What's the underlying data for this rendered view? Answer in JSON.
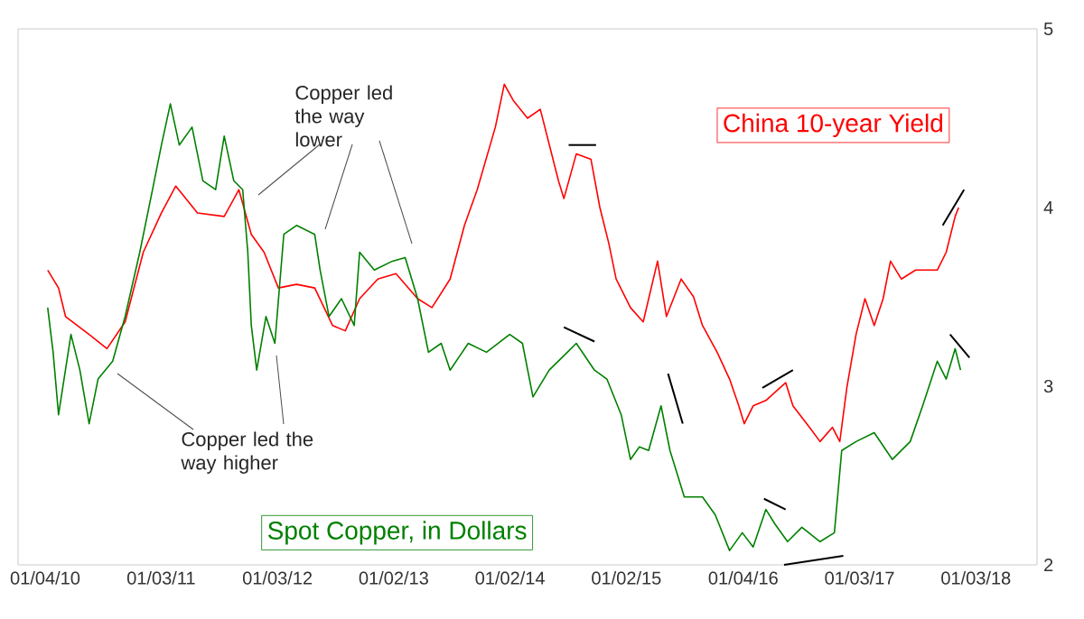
{
  "chart_data": {
    "type": "line",
    "xlim": [
      "2009-10-11",
      "2018-07-14"
    ],
    "ylim": [
      2,
      5
    ],
    "xticks": [
      {
        "value": "2010-01-04",
        "label": "01/04/10"
      },
      {
        "value": "2011-01-03",
        "label": "01/03/11"
      },
      {
        "value": "2012-01-03",
        "label": "01/03/12"
      },
      {
        "value": "2013-01-02",
        "label": "01/02/13"
      },
      {
        "value": "2014-01-02",
        "label": "01/02/14"
      },
      {
        "value": "2015-01-02",
        "label": "01/02/15"
      },
      {
        "value": "2016-01-04",
        "label": "01/04/16"
      },
      {
        "value": "2017-01-03",
        "label": "01/03/17"
      },
      {
        "value": "2018-01-03",
        "label": "01/03/18"
      }
    ],
    "yticks": [
      2,
      3,
      4,
      5
    ],
    "grid": false,
    "series": [
      {
        "name": "China 10-year Yield",
        "color": "#ff0000",
        "x": [
          "2010-01-12",
          "2010-02-15",
          "2010-03-09",
          "2010-05-22",
          "2010-07-17",
          "2010-09-12",
          "2010-11-08",
          "2011-01-04",
          "2011-02-18",
          "2011-04-27",
          "2011-07-20",
          "2011-09-04",
          "2011-10-13",
          "2011-11-22",
          "2012-01-06",
          "2012-03-03",
          "2012-04-29",
          "2012-06-24",
          "2012-08-03",
          "2012-09-17",
          "2012-11-13",
          "2013-01-09",
          "2013-03-18",
          "2013-05-02",
          "2013-06-28",
          "2013-08-12",
          "2013-09-21",
          "2013-11-17",
          "2013-12-15",
          "2014-01-12",
          "2014-02-26",
          "2014-04-07",
          "2014-06-03",
          "2014-06-20",
          "2014-07-29",
          "2014-09-13",
          "2014-10-11",
          "2014-11-08",
          "2014-12-01",
          "2015-01-15",
          "2015-02-24",
          "2015-04-10",
          "2015-05-08",
          "2015-06-23",
          "2015-08-01",
          "2015-08-29",
          "2015-10-14",
          "2015-11-22",
          "2015-12-21",
          "2016-01-07",
          "2016-02-04",
          "2016-03-15",
          "2016-05-16",
          "2016-06-08",
          "2016-08-03",
          "2016-09-01",
          "2016-10-10",
          "2016-11-02",
          "2016-11-24",
          "2016-12-23",
          "2017-01-20",
          "2017-02-18",
          "2017-03-18",
          "2017-04-10",
          "2017-05-14",
          "2017-06-28",
          "2017-09-04",
          "2017-10-02",
          "2017-10-30",
          "2017-11-10"
        ],
        "values": [
          3.65,
          3.55,
          3.39,
          3.29,
          3.21,
          3.36,
          3.75,
          3.97,
          4.12,
          3.97,
          3.95,
          4.1,
          3.85,
          3.75,
          3.55,
          3.57,
          3.55,
          3.34,
          3.31,
          3.49,
          3.6,
          3.63,
          3.49,
          3.44,
          3.6,
          3.9,
          4.1,
          4.45,
          4.69,
          4.6,
          4.5,
          4.55,
          4.15,
          4.05,
          4.3,
          4.27,
          4.0,
          3.8,
          3.6,
          3.44,
          3.36,
          3.7,
          3.39,
          3.6,
          3.5,
          3.34,
          3.19,
          3.04,
          2.89,
          2.79,
          2.89,
          2.92,
          3.02,
          2.89,
          2.76,
          2.69,
          2.77,
          2.69,
          2.99,
          3.29,
          3.49,
          3.34,
          3.49,
          3.7,
          3.6,
          3.65,
          3.65,
          3.75,
          3.95,
          4.0
        ]
      },
      {
        "name": "Spot Copper, in Dollars",
        "color": "#008000",
        "x": [
          "2010-01-12",
          "2010-01-29",
          "2010-02-15",
          "2010-03-26",
          "2010-04-23",
          "2010-05-22",
          "2010-06-19",
          "2010-08-04",
          "2010-09-12",
          "2010-10-28",
          "2010-12-07",
          "2011-01-04",
          "2011-02-01",
          "2011-03-01",
          "2011-04-10",
          "2011-05-14",
          "2011-06-23",
          "2011-07-20",
          "2011-08-19",
          "2011-09-16",
          "2011-10-02",
          "2011-10-13",
          "2011-10-30",
          "2011-11-28",
          "2011-12-26",
          "2012-01-23",
          "2012-03-03",
          "2012-04-29",
          "2012-05-16",
          "2012-06-13",
          "2012-07-22",
          "2012-08-31",
          "2012-09-17",
          "2012-11-02",
          "2012-12-29",
          "2013-02-07",
          "2013-03-18",
          "2013-04-21",
          "2013-05-31",
          "2013-06-28",
          "2013-08-24",
          "2013-10-20",
          "2014-01-01",
          "2014-02-10",
          "2014-03-15",
          "2014-05-05",
          "2014-07-01",
          "2014-07-29",
          "2014-09-24",
          "2014-11-02",
          "2014-12-17",
          "2015-01-15",
          "2015-02-12",
          "2015-03-13",
          "2015-04-21",
          "2015-05-19",
          "2015-07-03",
          "2015-08-29",
          "2015-10-08",
          "2015-11-22",
          "2016-01-01",
          "2016-02-04",
          "2016-03-15",
          "2016-04-12",
          "2016-05-22",
          "2016-07-06",
          "2016-09-01",
          "2016-10-16",
          "2016-11-08",
          "2016-12-23",
          "2017-02-18",
          "2017-04-16",
          "2017-06-11",
          "2017-07-20",
          "2017-09-04",
          "2017-10-02",
          "2017-10-30",
          "2017-11-16"
        ],
        "values": [
          3.44,
          3.19,
          2.84,
          3.29,
          3.09,
          2.79,
          3.04,
          3.14,
          3.39,
          3.75,
          4.1,
          4.35,
          4.58,
          4.35,
          4.45,
          4.15,
          4.1,
          4.4,
          4.15,
          4.1,
          3.75,
          3.34,
          3.09,
          3.39,
          3.24,
          3.85,
          3.9,
          3.85,
          3.65,
          3.39,
          3.49,
          3.34,
          3.75,
          3.65,
          3.7,
          3.72,
          3.49,
          3.19,
          3.24,
          3.09,
          3.24,
          3.19,
          3.29,
          3.24,
          2.94,
          3.09,
          3.19,
          3.24,
          3.09,
          3.04,
          2.84,
          2.59,
          2.66,
          2.64,
          2.89,
          2.64,
          2.38,
          2.38,
          2.28,
          2.08,
          2.18,
          2.1,
          2.31,
          2.23,
          2.13,
          2.21,
          2.13,
          2.18,
          2.64,
          2.69,
          2.74,
          2.59,
          2.69,
          2.89,
          3.14,
          3.04,
          3.21,
          3.09
        ]
      },
      {
        "color": "#000000",
        "x": [
          "2014-07-05",
          "2014-09-29"
        ],
        "values": [
          4.35,
          4.35
        ]
      },
      {
        "color": "#000000",
        "x": [
          "2014-06-20",
          "2014-09-24"
        ],
        "values": [
          3.33,
          3.25
        ]
      },
      {
        "color": "#000000",
        "x": [
          "2015-05-13",
          "2015-06-28"
        ],
        "values": [
          3.07,
          2.79
        ]
      },
      {
        "color": "#000000",
        "x": [
          "2016-03-04",
          "2016-06-08"
        ],
        "values": [
          2.99,
          3.09
        ]
      },
      {
        "color": "#000000",
        "x": [
          "2016-03-09",
          "2016-05-16"
        ],
        "values": [
          2.37,
          2.31
        ]
      },
      {
        "color": "#000000",
        "x": [
          "2016-05-11",
          "2016-11-13"
        ],
        "values": [
          2.0,
          2.05
        ]
      },
      {
        "color": "#000000",
        "x": [
          "2017-09-21",
          "2017-11-27"
        ],
        "values": [
          3.9,
          4.1
        ]
      },
      {
        "color": "#000000",
        "x": [
          "2017-10-14",
          "2017-12-14"
        ],
        "values": [
          3.29,
          3.16
        ]
      }
    ],
    "annotations": [
      "Copper led the way lower",
      "Copper led the way higher"
    ]
  }
}
